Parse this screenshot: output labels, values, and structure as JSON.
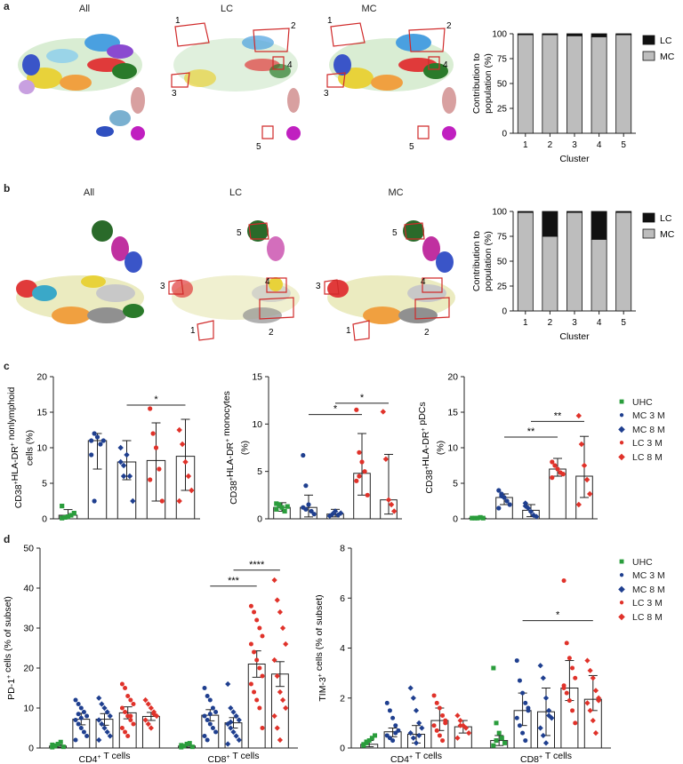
{
  "panels": {
    "a": {
      "letter": "a",
      "umap_titles": [
        "All",
        "LC",
        "MC"
      ],
      "lc_cluster_labels": [
        "1",
        "2",
        "3",
        "4",
        "5"
      ],
      "mc_cluster_labels": [
        "1",
        "2",
        "3",
        "4",
        "5"
      ]
    },
    "b": {
      "letter": "b",
      "umap_titles": [
        "All",
        "LC",
        "MC"
      ],
      "lc_cluster_labels": [
        "1",
        "2",
        "3",
        "4",
        "5"
      ],
      "mc_cluster_labels": [
        "1",
        "2",
        "3",
        "4",
        "5"
      ]
    },
    "c": {
      "letter": "c"
    },
    "d": {
      "letter": "d"
    }
  },
  "legend_groups": {
    "labels": [
      "UHC",
      "MC 3 M",
      "MC 8 M",
      "LC 3 M",
      "LC 8 M"
    ],
    "shapes": [
      "square",
      "circle",
      "diamond",
      "circle",
      "diamond"
    ],
    "colors": [
      "#2a9d3c",
      "#1f3f8f",
      "#1f3f8f",
      "#e0322a",
      "#e0322a"
    ]
  },
  "chart_data": [
    {
      "id": "a-bar",
      "type": "bar",
      "stacked": true,
      "categories": [
        "1",
        "2",
        "3",
        "4",
        "5"
      ],
      "series": [
        {
          "name": "MC",
          "values": [
            99,
            99,
            98,
            97,
            99
          ],
          "color": "#bdbdbd"
        },
        {
          "name": "LC",
          "values": [
            1,
            1,
            2,
            3,
            1
          ],
          "color": "#111111"
        }
      ],
      "xlabel": "Cluster",
      "ylabel": "Contribution to population (%)",
      "ylim": [
        0,
        100
      ],
      "yticks": [
        0,
        25,
        50,
        75,
        100
      ],
      "legend": [
        "LC",
        "MC"
      ]
    },
    {
      "id": "b-bar",
      "type": "bar",
      "stacked": true,
      "categories": [
        "1",
        "2",
        "3",
        "4",
        "5"
      ],
      "series": [
        {
          "name": "MC",
          "values": [
            99,
            75,
            99,
            72,
            99
          ],
          "color": "#bdbdbd"
        },
        {
          "name": "LC",
          "values": [
            1,
            25,
            1,
            28,
            1
          ],
          "color": "#111111"
        }
      ],
      "xlabel": "Cluster",
      "ylabel": "Contribution to population (%)",
      "ylim": [
        0,
        100
      ],
      "yticks": [
        0,
        25,
        50,
        75,
        100
      ],
      "legend": [
        "LC",
        "MC"
      ]
    },
    {
      "id": "c1",
      "type": "bar",
      "categories": [
        "UHC",
        "MC 3 M",
        "MC 8 M",
        "LC 3 M",
        "LC 8 M"
      ],
      "values": [
        0.5,
        11,
        8,
        8.2,
        8.8
      ],
      "errors": [
        [
          0,
          1.3
        ],
        [
          7,
          12
        ],
        [
          5.5,
          11
        ],
        [
          2.5,
          13.5
        ],
        [
          4,
          14
        ]
      ],
      "points": [
        [
          0.1,
          0.2,
          0.3,
          0.5,
          0.8,
          1.8
        ],
        [
          11,
          12,
          11.5,
          10.5,
          11,
          9,
          2.5
        ],
        [
          10,
          7.5,
          9,
          6,
          2.5,
          8,
          6
        ],
        [
          15.5,
          12,
          10,
          7,
          2.5,
          5.5
        ],
        [
          12.5,
          10.5,
          8,
          6,
          4,
          2.5
        ]
      ],
      "ylabel": "CD38+HLA-DR+ nonlymphoid cells (%)",
      "ylim": [
        0,
        20
      ],
      "yticks": [
        0,
        5,
        10,
        15,
        20
      ],
      "significance": [
        {
          "from": 2,
          "to": 4,
          "label": "*",
          "y": 16
        }
      ]
    },
    {
      "id": "c2",
      "type": "bar",
      "categories": [
        "UHC",
        "MC 3 M",
        "MC 8 M",
        "LC 3 M",
        "LC 8 M"
      ],
      "values": [
        1.2,
        1.2,
        0.5,
        4.8,
        2.0
      ],
      "errors": [
        [
          0.8,
          1.7
        ],
        [
          0.2,
          2.5
        ],
        [
          0.2,
          1.0
        ],
        [
          2.5,
          9.0
        ],
        [
          0.5,
          6.8
        ]
      ],
      "points": [
        [
          1.0,
          1.5,
          1.2,
          0.8,
          1.3,
          1.6
        ],
        [
          6.7,
          3.5,
          1.5,
          0.8,
          0.5,
          1.2,
          1.0
        ],
        [
          0.3,
          0.5,
          0.8,
          0.4,
          0.6
        ],
        [
          11.5,
          7,
          6,
          5,
          2.5,
          4,
          4.5
        ],
        [
          11.3,
          6.3,
          2,
          1.5,
          0.8
        ]
      ],
      "ylabel": "CD38+HLA-DR+ monocytes (%)",
      "ylim": [
        0,
        15
      ],
      "yticks": [
        0,
        5,
        10,
        15
      ],
      "significance": [
        {
          "from": 1,
          "to": 3,
          "label": "*",
          "y": 11
        },
        {
          "from": 2,
          "to": 4,
          "label": "*",
          "y": 12.2
        }
      ]
    },
    {
      "id": "c3",
      "type": "bar",
      "categories": [
        "UHC",
        "MC 3 M",
        "MC 8 M",
        "LC 3 M",
        "LC 8 M"
      ],
      "values": [
        0.1,
        3.0,
        1.2,
        7.0,
        6.0
      ],
      "errors": [
        [
          0,
          0.2
        ],
        [
          2,
          3.5
        ],
        [
          0.3,
          2.0
        ],
        [
          6,
          8.5
        ],
        [
          3,
          11.6
        ]
      ],
      "points": [
        [
          0.1,
          0.1,
          0.1,
          0.2,
          0.1
        ],
        [
          4,
          3.5,
          3,
          2.5,
          2,
          1.5,
          3.2
        ],
        [
          2.2,
          1.5,
          1,
          0.5,
          0.3,
          1.8
        ],
        [
          8,
          7.5,
          7,
          6.5,
          6.3,
          5.8
        ],
        [
          14.5,
          10.5,
          7.5,
          5.5,
          3.5,
          2
        ]
      ],
      "ylabel": "CD38+HLA-DR+ pDCs (%)",
      "ylim": [
        0,
        20
      ],
      "yticks": [
        0,
        5,
        10,
        15,
        20
      ],
      "significance": [
        {
          "from": 1,
          "to": 3,
          "label": "**",
          "y": 11.5
        },
        {
          "from": 2,
          "to": 4,
          "label": "**",
          "y": 13.7
        }
      ]
    },
    {
      "id": "d1",
      "type": "bar",
      "groups": [
        "CD4+ T cells",
        "CD8+ T cells"
      ],
      "categories": [
        "UHC",
        "MC 3 M",
        "MC 8 M",
        "LC 3 M",
        "LC 8 M"
      ],
      "values": [
        [
          0.5,
          7.2,
          7.2,
          8.8,
          7.9
        ],
        [
          0.5,
          8.2,
          6.3,
          21,
          18.5
        ]
      ],
      "errors": [
        [
          [
            0.2,
            0.8
          ],
          [
            5.8,
            8.7
          ],
          [
            5.7,
            8.6
          ],
          [
            7.3,
            10.3
          ],
          [
            6.9,
            8.9
          ]
        ],
        [
          [
            0.2,
            0.8
          ],
          [
            6.8,
            9.6
          ],
          [
            5.0,
            7.6
          ],
          [
            17.7,
            24.3
          ],
          [
            15.4,
            21.6
          ]
        ]
      ],
      "points": [
        [
          [
            0.2,
            0.5,
            1,
            1.5,
            0.3,
            0.8,
            0.6
          ],
          [
            12,
            11,
            10,
            9,
            8,
            7,
            6,
            5,
            4,
            3,
            2,
            8.5,
            7.5
          ],
          [
            12.5,
            11,
            10,
            9,
            8,
            7,
            6,
            5,
            4,
            3,
            2
          ],
          [
            16,
            15,
            13,
            12,
            11,
            10,
            9,
            8,
            7,
            6,
            5,
            4,
            3,
            8
          ],
          [
            12,
            11,
            10,
            9,
            8,
            7,
            6,
            5,
            8.5
          ]
        ],
        [
          [
            0.2,
            0.5,
            1,
            1.2,
            0.3,
            0.7
          ],
          [
            15,
            13,
            12,
            10,
            9,
            8,
            7,
            6,
            5,
            4,
            3,
            2,
            8.5
          ],
          [
            16,
            10,
            9,
            8,
            7,
            6,
            5,
            4,
            3,
            2,
            1,
            6.5
          ],
          [
            35.5,
            34,
            32,
            30,
            28,
            26,
            24,
            22,
            20,
            18,
            16,
            14,
            12,
            10,
            5
          ],
          [
            42,
            37,
            34,
            30,
            26,
            22,
            18,
            14,
            12,
            10,
            8,
            5,
            2
          ]
        ]
      ],
      "ylabel": "PD-1+ cells (% of subset)",
      "ylim": [
        0,
        50
      ],
      "yticks": [
        0,
        10,
        20,
        30,
        40,
        50
      ],
      "significance": [
        {
          "from": [
            1,
            1
          ],
          "to": [
            1,
            3
          ],
          "label": "***",
          "y": 40.5
        },
        {
          "from": [
            1,
            2
          ],
          "to": [
            1,
            4
          ],
          "label": "****",
          "y": 44.5
        }
      ]
    },
    {
      "id": "d2",
      "type": "bar",
      "groups": [
        "CD4+ T cells",
        "CD8+ T cells"
      ],
      "categories": [
        "UHC",
        "MC 3 M",
        "MC 8 M",
        "LC 3 M",
        "LC 8 M"
      ],
      "values": [
        [
          0.15,
          0.65,
          0.55,
          1.1,
          0.85
        ],
        [
          0.3,
          1.5,
          1.45,
          2.4,
          1.95
        ]
      ],
      "errors": [
        [
          [
            0.05,
            0.3
          ],
          [
            0.45,
            0.8
          ],
          [
            0.2,
            0.9
          ],
          [
            0.7,
            1.6
          ],
          [
            0.6,
            1.1
          ]
        ],
        [
          [
            0.1,
            0.5
          ],
          [
            0.9,
            2.2
          ],
          [
            0.5,
            2.4
          ],
          [
            1.9,
            3.5
          ],
          [
            1.5,
            2.9
          ]
        ]
      ],
      "points": [
        [
          [
            0.1,
            0.2,
            0.3,
            0.4,
            0.5,
            0.15,
            0.25
          ],
          [
            1.8,
            1.5,
            1.2,
            0.9,
            0.7,
            0.5,
            0.4,
            0.3,
            0.6
          ],
          [
            2.4,
            2.0,
            1.5,
            1.0,
            0.8,
            0.6,
            0.4,
            0.2,
            0.5
          ],
          [
            2.1,
            1.8,
            1.6,
            1.3,
            1.1,
            0.9,
            0.7,
            0.5,
            0.3,
            1.0
          ],
          [
            1.3,
            1.1,
            0.9,
            0.8,
            0.6,
            0.4,
            0.9
          ]
        ],
        [
          [
            3.2,
            1.0,
            0.6,
            0.4,
            0.2,
            0.1,
            0.3
          ],
          [
            3.5,
            2.7,
            2.2,
            1.8,
            1.5,
            1.2,
            0.9,
            0.6,
            0.3,
            1.6
          ],
          [
            3.3,
            2.8,
            2.0,
            1.5,
            1.2,
            0.8,
            0.5,
            0.2,
            1.3
          ],
          [
            6.7,
            4.2,
            3.6,
            3.2,
            2.8,
            2.5,
            2.2,
            1.9,
            1.5,
            1.0,
            2.4
          ],
          [
            3.5,
            3.1,
            2.8,
            2.3,
            2.0,
            1.8,
            1.5,
            1.1,
            0.6,
            1.9
          ]
        ]
      ],
      "ylabel": "TIM-3+ cells (% of subset)",
      "ylim": [
        0,
        8
      ],
      "yticks": [
        0,
        2,
        4,
        6,
        8
      ],
      "significance": [
        {
          "from": [
            1,
            1
          ],
          "to": [
            1,
            4
          ],
          "label": "*",
          "y": 5.1
        }
      ]
    }
  ]
}
